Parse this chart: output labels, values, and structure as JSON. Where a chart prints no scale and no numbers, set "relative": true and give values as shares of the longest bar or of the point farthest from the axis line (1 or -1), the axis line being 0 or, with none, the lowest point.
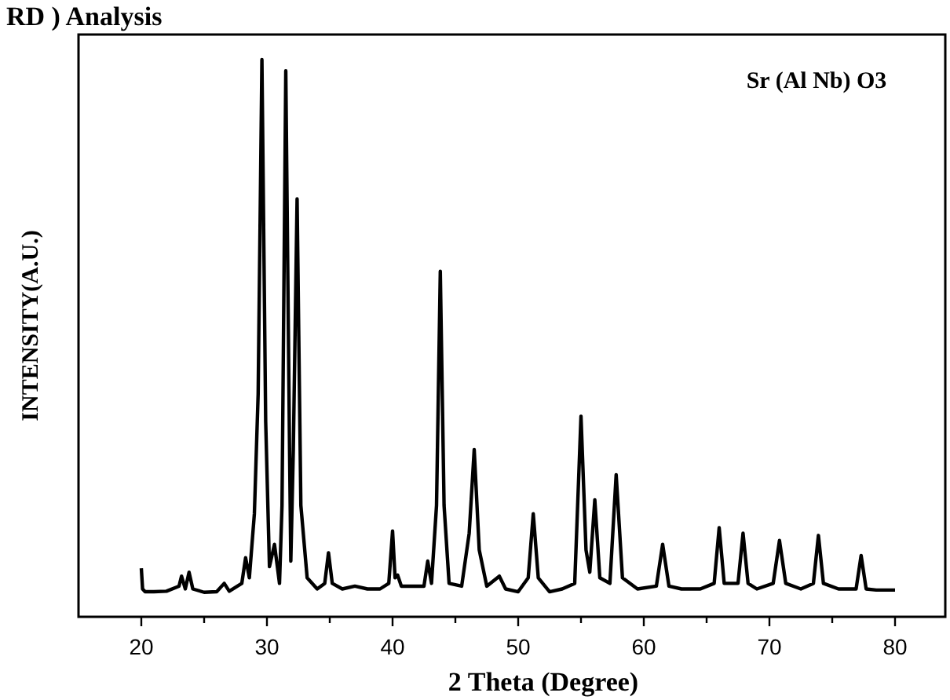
{
  "chart_data": {
    "type": "line",
    "title": "RD ) Analysis",
    "xlabel": "2 Theta (Degree)",
    "ylabel": "INTENSITY(A.U.)",
    "annotations": [
      "Sr (Al Nb) O3"
    ],
    "relative": true,
    "xlim": [
      15,
      84
    ],
    "xticks": [
      20,
      {
        "value": 25,
        "label": null
      },
      30,
      {
        "value": 35,
        "label": null
      },
      40,
      {
        "value": 45,
        "label": null
      },
      50,
      {
        "value": 55,
        "label": null
      },
      60,
      {
        "value": 65,
        "label": null
      },
      70,
      {
        "value": 75,
        "label": null
      },
      80
    ],
    "series": [
      {
        "color": "#000000",
        "x": [
          20,
          20.1,
          20.3,
          21,
          22,
          23,
          23.2,
          23.5,
          23.8,
          24.1,
          25,
          26,
          26.6,
          27,
          28,
          28.3,
          28.6,
          29,
          29.3,
          29.6,
          29.9,
          30.2,
          30.6,
          31,
          31.2,
          31.5,
          31.8,
          31.9,
          32.1,
          32.4,
          32.7,
          33.2,
          34,
          34.6,
          34.9,
          35.2,
          36,
          37,
          38,
          39,
          39.7,
          40,
          40.2,
          40.4,
          40.7,
          41.5,
          42.5,
          42.8,
          43.1,
          43.5,
          43.8,
          44.1,
          44.5,
          45.5,
          46.1,
          46.5,
          46.9,
          47.5,
          48.5,
          49,
          50,
          50.8,
          51.2,
          51.6,
          52.5,
          53.5,
          54.5,
          55,
          55.4,
          55.7,
          56.1,
          56.5,
          57.3,
          57.8,
          58.3,
          59.5,
          61,
          61.5,
          62,
          63,
          64.5,
          65.6,
          66,
          66.4,
          67,
          67.5,
          67.9,
          68.3,
          69,
          70.3,
          70.8,
          71.3,
          72.5,
          73.5,
          73.9,
          74.3,
          75.5,
          76.9,
          77.3,
          77.7,
          78.5,
          80
        ],
        "values": [
          0.087,
          0.05,
          0.045,
          0.045,
          0.046,
          0.055,
          0.073,
          0.05,
          0.08,
          0.05,
          0.044,
          0.045,
          0.06,
          0.046,
          0.06,
          0.106,
          0.07,
          0.185,
          0.4,
          1.0,
          0.35,
          0.09,
          0.13,
          0.06,
          0.2,
          0.98,
          0.3,
          0.1,
          0.3,
          0.75,
          0.2,
          0.07,
          0.05,
          0.06,
          0.115,
          0.06,
          0.05,
          0.055,
          0.05,
          0.05,
          0.06,
          0.154,
          0.07,
          0.075,
          0.055,
          0.055,
          0.055,
          0.1,
          0.06,
          0.2,
          0.62,
          0.2,
          0.06,
          0.055,
          0.15,
          0.3,
          0.12,
          0.055,
          0.073,
          0.05,
          0.045,
          0.07,
          0.185,
          0.07,
          0.045,
          0.05,
          0.06,
          0.36,
          0.12,
          0.08,
          0.21,
          0.07,
          0.06,
          0.255,
          0.07,
          0.05,
          0.055,
          0.13,
          0.055,
          0.05,
          0.05,
          0.06,
          0.16,
          0.06,
          0.06,
          0.06,
          0.15,
          0.06,
          0.05,
          0.06,
          0.137,
          0.06,
          0.05,
          0.06,
          0.146,
          0.06,
          0.05,
          0.05,
          0.11,
          0.05,
          0.048,
          0.048
        ]
      }
    ]
  }
}
